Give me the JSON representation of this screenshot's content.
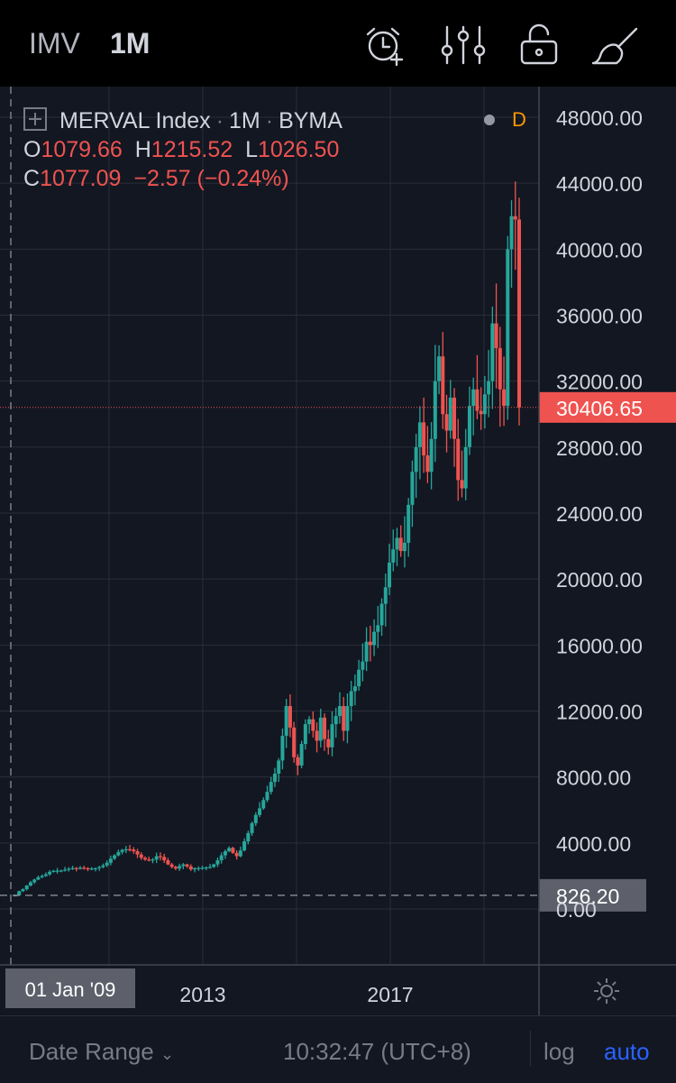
{
  "toolbar": {
    "symbol": "IMV",
    "timeframe": "1M",
    "icons": [
      "alarm-add-icon",
      "indicators-icon",
      "unlock-icon",
      "drawing-brush-icon"
    ]
  },
  "legend": {
    "title": "MERVAL Index",
    "interval": "1M",
    "exchange": "BYMA",
    "status": "D",
    "o_label": "O",
    "o_value": "1079.66",
    "h_label": "H",
    "h_value": "1215.52",
    "l_label": "L",
    "l_value": "1026.50",
    "c_label": "C",
    "c_value": "1077.09",
    "change": "−2.57 (−0.24%)"
  },
  "bottom_bar": {
    "date_range": "Date Range",
    "time": "10:32:47 (UTC+8)",
    "log": "log",
    "auto": "auto"
  },
  "colors": {
    "background": "#131722",
    "toolbar_bg": "#000000",
    "up": "#26a69a",
    "down": "#ef5350",
    "grid": "#2a2e39",
    "auto_accent": "#2962ff"
  },
  "chart_data": {
    "type": "candlestick",
    "timeframe": "1M",
    "ylim": [
      -2000,
      49000
    ],
    "y_ticks": [
      "48000.00",
      "44000.00",
      "40000.00",
      "36000.00",
      "32000.00",
      "28000.00",
      "24000.00",
      "20000.00",
      "16000.00",
      "12000.00",
      "8000.00",
      "4000.00",
      "0.00"
    ],
    "x_ticks": [
      "2013",
      "2017"
    ],
    "crosshair_x_label": "01 Jan '09",
    "crosshair_y_label": "826.20",
    "crosshair_y_value": 826.2,
    "last_price_label": "30406.65",
    "last_price": 30406.65,
    "first_year": 2009,
    "last_year": 2019.75,
    "monthly_closes": [
      826,
      1080,
      1200,
      1420,
      1620,
      1780,
      1920,
      2000,
      2100,
      2250,
      2310,
      2320,
      2330,
      2380,
      2440,
      2480,
      2460,
      2500,
      2470,
      2440,
      2450,
      2470,
      2540,
      2640,
      2800,
      3050,
      3250,
      3450,
      3580,
      3620,
      3600,
      3500,
      3300,
      3100,
      3000,
      2950,
      3000,
      3200,
      3150,
      2950,
      2700,
      2550,
      2450,
      2600,
      2700,
      2580,
      2400,
      2470,
      2480,
      2500,
      2520,
      2550,
      2700,
      2950,
      3250,
      3500,
      3700,
      3400,
      3200,
      3550,
      4100,
      4600,
      5200,
      5700,
      6100,
      6600,
      7100,
      7700,
      8200,
      9000,
      10500,
      12300,
      11000,
      9200,
      8700,
      10000,
      11200,
      11500,
      10800,
      10200,
      11600,
      10300,
      9800,
      11200,
      11700,
      12300,
      10800,
      12300,
      13200,
      13500,
      14500,
      15000,
      16200,
      16000,
      16800,
      17200,
      18500,
      19500,
      21000,
      21800,
      22500,
      21700,
      22200,
      24500,
      26500,
      28000,
      29500,
      27500,
      26500,
      28500,
      32000,
      33500,
      30000,
      29000,
      31000,
      28500,
      26000,
      25500,
      28000,
      30500,
      31500,
      30200,
      30000,
      31200,
      32000,
      35500,
      34000,
      31500,
      30500,
      40000,
      42000,
      41800,
      30406.65
    ]
  }
}
